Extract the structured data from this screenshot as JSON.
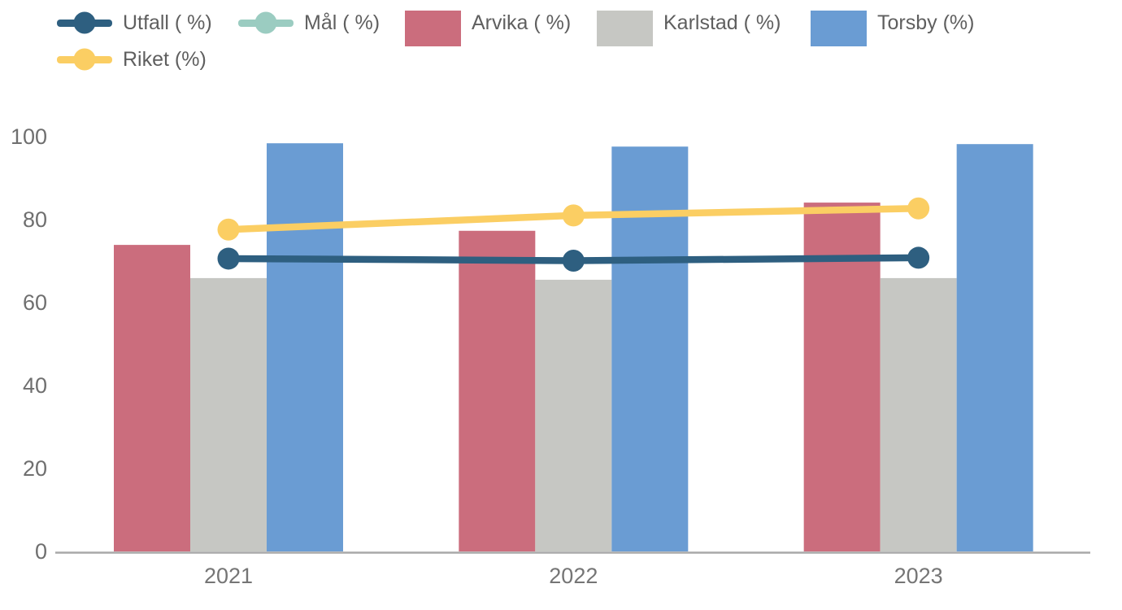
{
  "chart_data": {
    "type": "bar",
    "subtype": "grouped bars with overlaid lines",
    "title": "",
    "xlabel": "",
    "ylabel": "",
    "categories": [
      "2021",
      "2022",
      "2023"
    ],
    "series": [
      {
        "name": "Utfall ( %)",
        "type": "line",
        "color": "#2e5f80",
        "values": [
          70.6,
          70.1,
          70.8
        ]
      },
      {
        "name": "Mål ( %)",
        "type": "line",
        "color": "#9bccc1",
        "values": []
      },
      {
        "name": "Arvika ( %)",
        "type": "bar",
        "color": "#cb6d7d",
        "values": [
          73.9,
          77.3,
          84.1
        ]
      },
      {
        "name": "Karlstad ( %)",
        "type": "bar",
        "color": "#c6c7c3",
        "values": [
          65.9,
          65.5,
          65.9
        ]
      },
      {
        "name": "Torsby (%)",
        "type": "bar",
        "color": "#6a9cd3",
        "values": [
          98.4,
          97.6,
          98.2
        ]
      },
      {
        "name": "Riket (%)",
        "type": "line",
        "color": "#fbce63",
        "values": [
          77.6,
          81,
          82.7
        ]
      }
    ],
    "yticks": [
      0,
      20,
      40,
      60,
      80,
      100
    ],
    "ylim": [
      0,
      100
    ],
    "grid": false,
    "legend_position": "top-left, two rows"
  },
  "style": {
    "background": "#ffffff",
    "axis_color": "#a9a9a9",
    "tick_label_color": "#6f6f6f",
    "x_label_color": "#757575",
    "legend_text_color": "#5f5f5f"
  }
}
